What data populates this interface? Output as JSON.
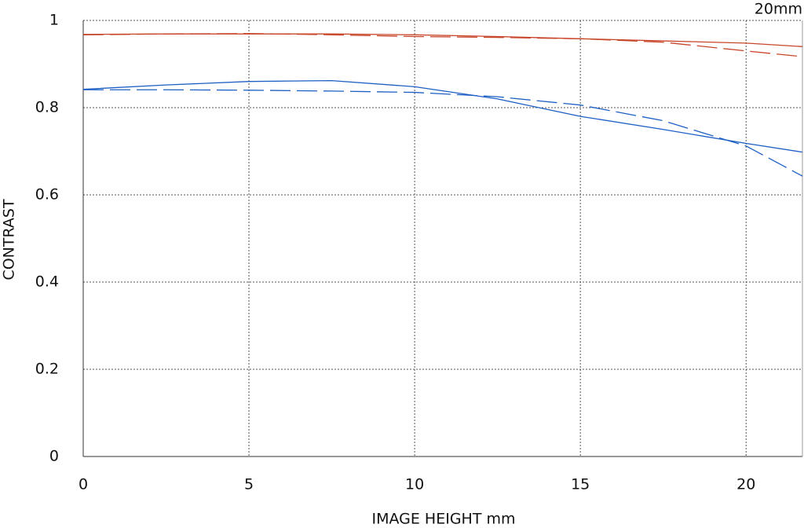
{
  "chart_data": {
    "type": "line",
    "title": "20mm",
    "x_label": "IMAGE HEIGHT  mm",
    "y_label": "CONTRAST",
    "x": [
      0,
      2.5,
      5,
      7.5,
      10,
      12.5,
      15,
      17.5,
      20,
      21.7
    ],
    "series": [
      {
        "color": "#c8462a",
        "dashed": false,
        "values": [
          0.968,
          0.969,
          0.969,
          0.969,
          0.967,
          0.963,
          0.958,
          0.953,
          0.948,
          0.94
        ]
      },
      {
        "color": "#c8462a",
        "dashed": true,
        "values": [
          0.967,
          0.969,
          0.97,
          0.967,
          0.963,
          0.961,
          0.958,
          0.95,
          0.93,
          0.917
        ]
      },
      {
        "color": "#1d5fc4",
        "dashed": false,
        "values": [
          0.842,
          0.852,
          0.86,
          0.862,
          0.848,
          0.82,
          0.78,
          0.75,
          0.718,
          0.698
        ]
      },
      {
        "color": "#1d5fc4",
        "dashed": true,
        "values": [
          0.841,
          0.841,
          0.84,
          0.838,
          0.835,
          0.825,
          0.806,
          0.77,
          0.712,
          0.643
        ]
      }
    ],
    "xlim": [
      0,
      21.7
    ],
    "xticks": [
      0,
      5,
      10,
      15,
      20
    ],
    "ylim": [
      0,
      1
    ],
    "yticks": [
      0,
      0.2,
      0.4,
      0.6,
      0.8,
      1
    ],
    "grid": true
  }
}
